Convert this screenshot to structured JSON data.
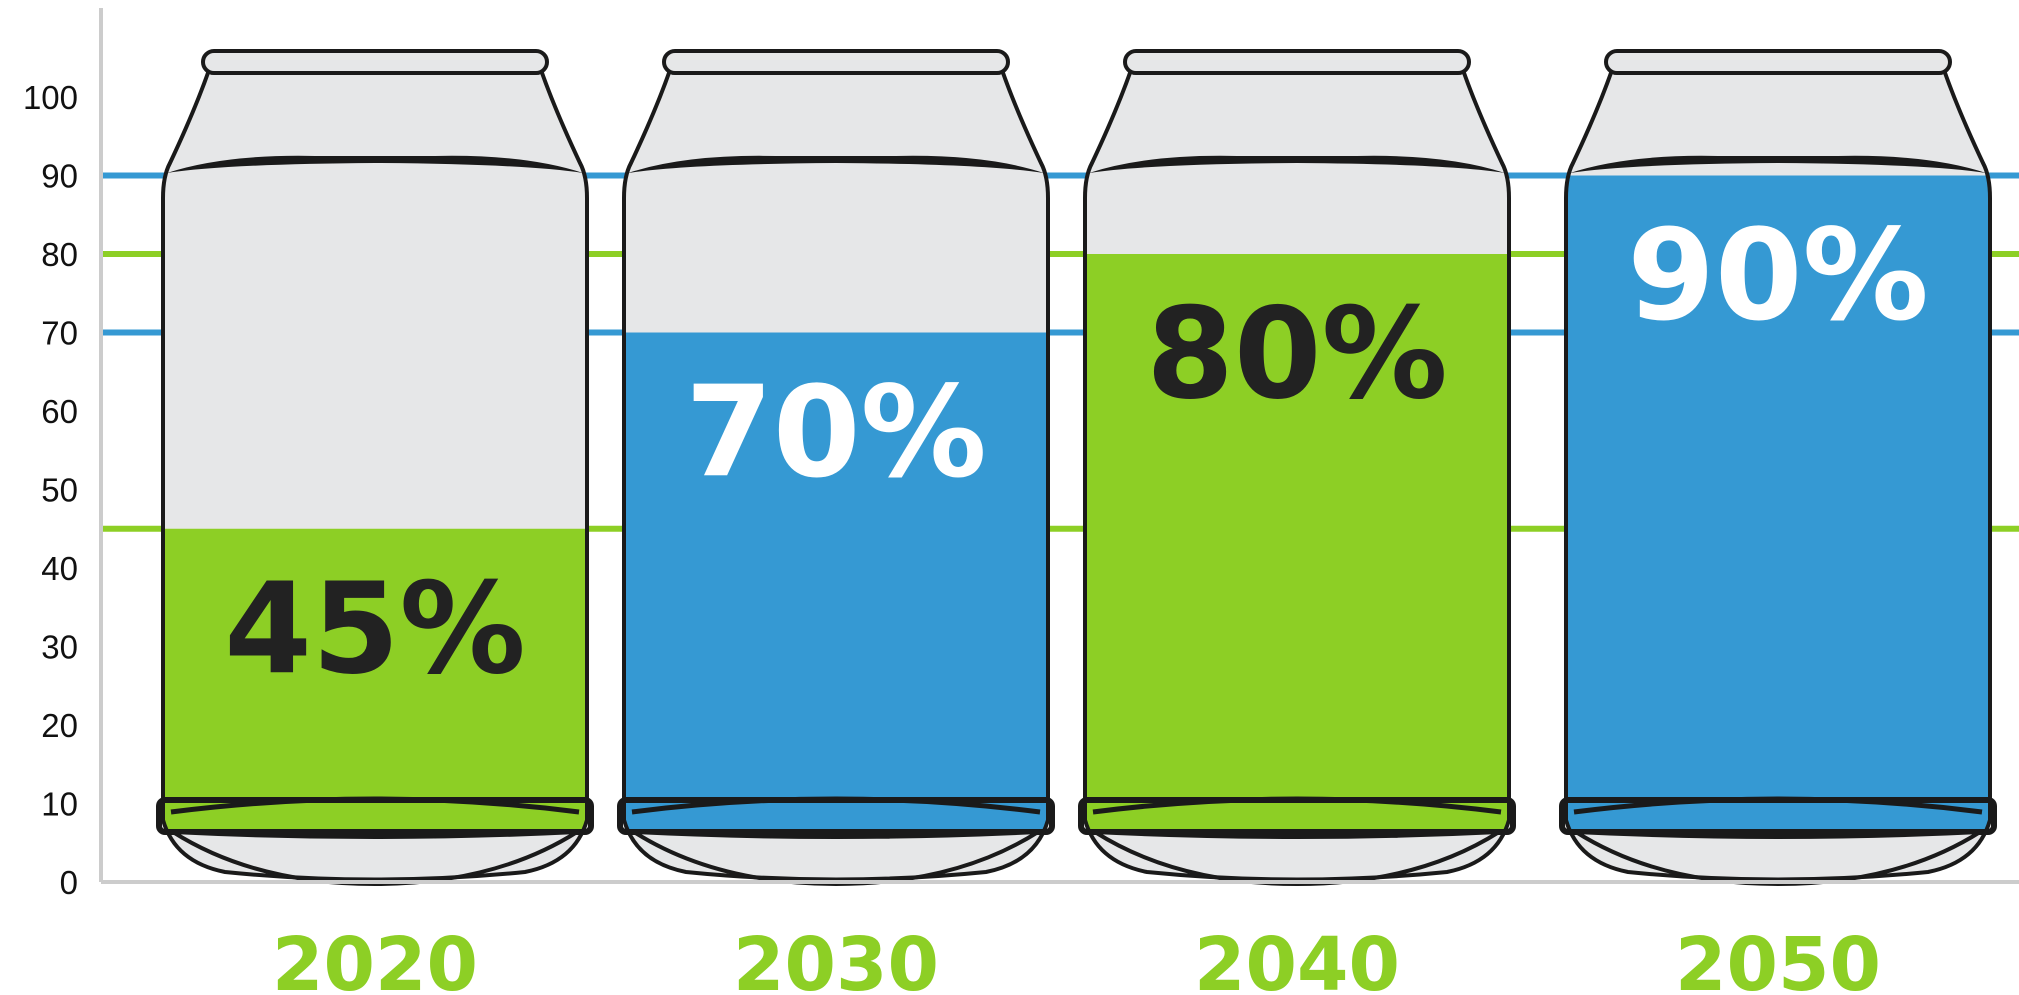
{
  "colors": {
    "green": "#8DCF25",
    "blue": "#3599D3",
    "can_empty": "#E6E7E8",
    "can_outline": "#1A1A1A",
    "dark_text": "#222222",
    "white_text": "#FFFFFF",
    "axis": "#CCCCCC"
  },
  "chart_data": {
    "type": "bar",
    "style": "pictorial can fill levels",
    "categories": [
      "2020",
      "2030",
      "2040",
      "2050"
    ],
    "values": [
      45,
      70,
      80,
      90
    ],
    "value_labels": [
      "45%",
      "70%",
      "80%",
      "90%"
    ],
    "fill_colors": [
      "green",
      "blue",
      "green",
      "blue"
    ],
    "value_label_colors": [
      "dark_text",
      "white_text",
      "dark_text",
      "white_text"
    ],
    "category_label_color": "green",
    "ylim": [
      0,
      100
    ],
    "y_ticks": [
      "0",
      "10",
      "20",
      "30",
      "40",
      "50",
      "60",
      "70",
      "80",
      "90",
      "100"
    ],
    "reference_lines": [
      {
        "value": 90,
        "color": "blue"
      },
      {
        "value": 80,
        "color": "green"
      },
      {
        "value": 70,
        "color": "blue"
      },
      {
        "value": 45,
        "color": "green"
      }
    ],
    "title": "",
    "xlabel": "",
    "ylabel": ""
  }
}
